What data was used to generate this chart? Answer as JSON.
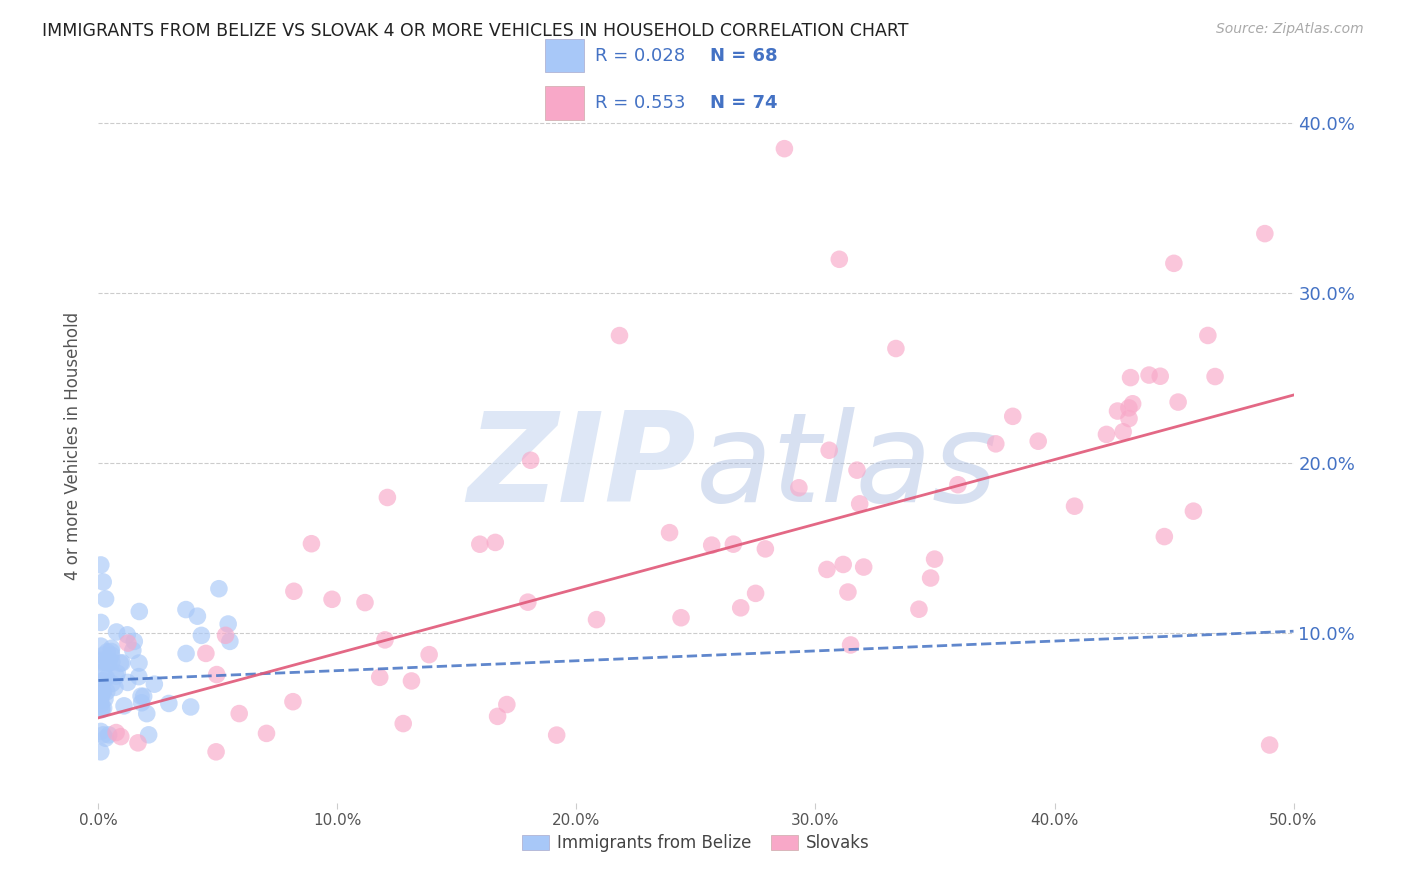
{
  "title": "IMMIGRANTS FROM BELIZE VS SLOVAK 4 OR MORE VEHICLES IN HOUSEHOLD CORRELATION CHART",
  "source": "Source: ZipAtlas.com",
  "ylabel": "4 or more Vehicles in Household",
  "xlim": [
    0.0,
    0.5
  ],
  "ylim": [
    0.0,
    0.42
  ],
  "xtick_vals": [
    0.0,
    0.1,
    0.2,
    0.3,
    0.4,
    0.5
  ],
  "xtick_labels": [
    "0.0%",
    "10.0%",
    "20.0%",
    "30.0%",
    "40.0%",
    "50.0%"
  ],
  "ytick_vals": [
    0.1,
    0.2,
    0.3,
    0.4
  ],
  "ytick_labels": [
    "10.0%",
    "20.0%",
    "30.0%",
    "40.0%"
  ],
  "legend_blue_r": "R = 0.028",
  "legend_blue_n": "N = 68",
  "legend_pink_r": "R = 0.553",
  "legend_pink_n": "N = 74",
  "legend_label_blue": "Immigrants from Belize",
  "legend_label_pink": "Slovaks",
  "blue_scatter_color": "#a8c8f8",
  "pink_scatter_color": "#f8a8c8",
  "blue_line_color": "#4472c4",
  "pink_line_color": "#e05878",
  "text_r_n_color": "#4472c4",
  "title_color": "#222222",
  "source_color": "#aaaaaa",
  "tick_right_color": "#4472c4",
  "grid_color": "#cccccc",
  "watermark_zip_color": "#c8d8f0",
  "watermark_atlas_color": "#a8bce0",
  "background_color": "#ffffff",
  "blue_line_x": [
    0.0,
    0.5
  ],
  "blue_line_y": [
    0.072,
    0.101
  ],
  "pink_line_x": [
    0.0,
    0.5
  ],
  "pink_line_y": [
    0.05,
    0.24
  ]
}
